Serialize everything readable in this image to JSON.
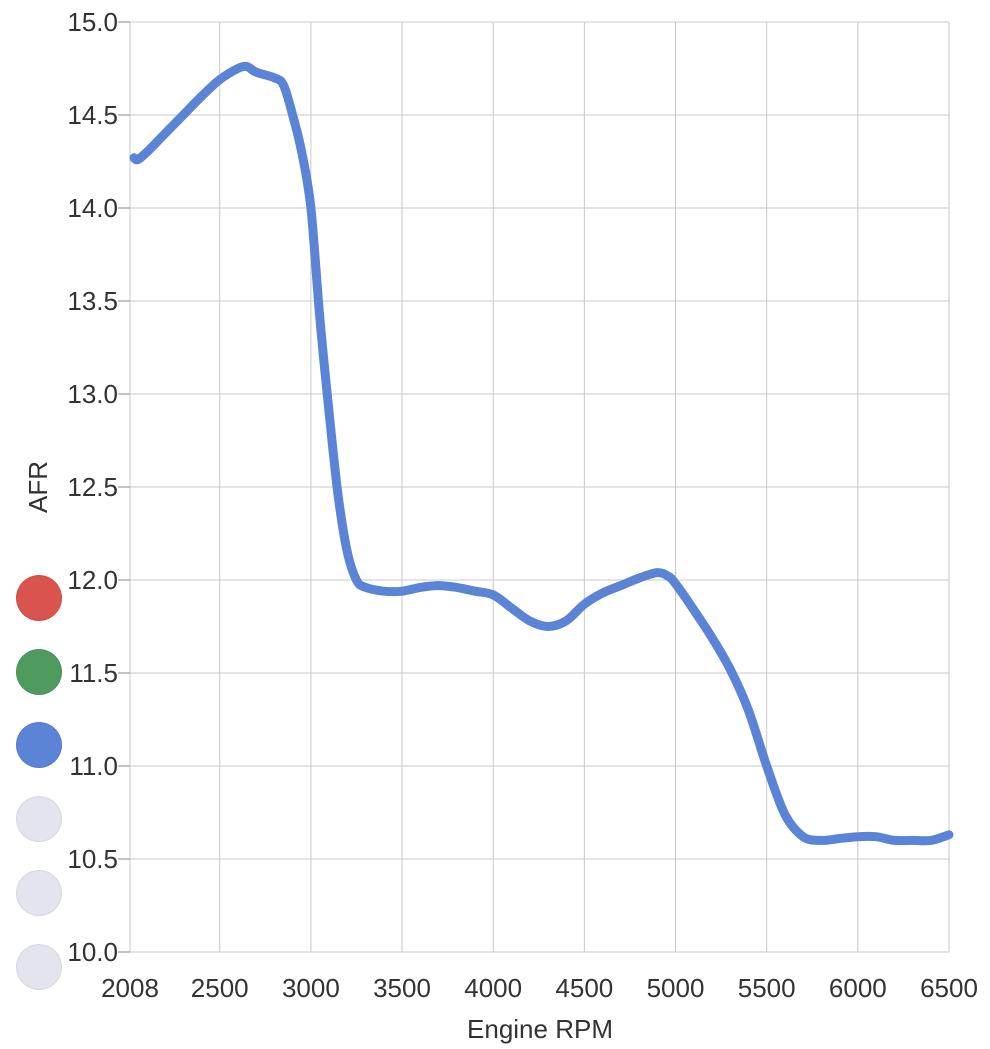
{
  "chart_data": {
    "type": "line",
    "title": "",
    "xlabel": "Engine RPM",
    "ylabel": "AFR",
    "xlim": [
      2008,
      6500
    ],
    "ylim": [
      10.0,
      15.0
    ],
    "x_ticks": [
      2008,
      2500,
      3000,
      3500,
      4000,
      4500,
      5000,
      5500,
      6000,
      6500
    ],
    "y_ticks": [
      "10.0",
      "10.5",
      "11.0",
      "11.5",
      "12.0",
      "12.5",
      "13.0",
      "13.5",
      "14.0",
      "14.5",
      "15.0"
    ],
    "grid": true,
    "series": [
      {
        "color": "#5b84d6",
        "points": [
          [
            2030,
            14.27
          ],
          [
            2050,
            14.26
          ],
          [
            2100,
            14.3
          ],
          [
            2200,
            14.4
          ],
          [
            2300,
            14.5
          ],
          [
            2400,
            14.6
          ],
          [
            2500,
            14.69
          ],
          [
            2600,
            14.75
          ],
          [
            2650,
            14.76
          ],
          [
            2700,
            14.73
          ],
          [
            2800,
            14.7
          ],
          [
            2850,
            14.66
          ],
          [
            2900,
            14.5
          ],
          [
            2950,
            14.3
          ],
          [
            3000,
            14.0
          ],
          [
            3050,
            13.4
          ],
          [
            3100,
            12.9
          ],
          [
            3150,
            12.45
          ],
          [
            3200,
            12.15
          ],
          [
            3250,
            12.0
          ],
          [
            3300,
            11.96
          ],
          [
            3400,
            11.94
          ],
          [
            3500,
            11.94
          ],
          [
            3600,
            11.96
          ],
          [
            3700,
            11.97
          ],
          [
            3800,
            11.96
          ],
          [
            3900,
            11.94
          ],
          [
            4000,
            11.92
          ],
          [
            4100,
            11.85
          ],
          [
            4200,
            11.78
          ],
          [
            4300,
            11.75
          ],
          [
            4400,
            11.78
          ],
          [
            4500,
            11.87
          ],
          [
            4600,
            11.93
          ],
          [
            4700,
            11.97
          ],
          [
            4800,
            12.01
          ],
          [
            4900,
            12.04
          ],
          [
            4960,
            12.02
          ],
          [
            5000,
            11.98
          ],
          [
            5100,
            11.84
          ],
          [
            5200,
            11.69
          ],
          [
            5300,
            11.52
          ],
          [
            5400,
            11.3
          ],
          [
            5500,
            11.0
          ],
          [
            5600,
            10.74
          ],
          [
            5700,
            10.62
          ],
          [
            5800,
            10.6
          ],
          [
            5900,
            10.61
          ],
          [
            6000,
            10.62
          ],
          [
            6100,
            10.62
          ],
          [
            6200,
            10.6
          ],
          [
            6300,
            10.6
          ],
          [
            6400,
            10.6
          ],
          [
            6500,
            10.63
          ]
        ]
      }
    ]
  },
  "series_selector": [
    {
      "color": "#d9534f"
    },
    {
      "color": "#4f9a5f"
    },
    {
      "color": "#5b84d6"
    },
    {
      "color": "#e4e4ee"
    },
    {
      "color": "#e4e4ee"
    },
    {
      "color": "#e4e4ee"
    }
  ]
}
